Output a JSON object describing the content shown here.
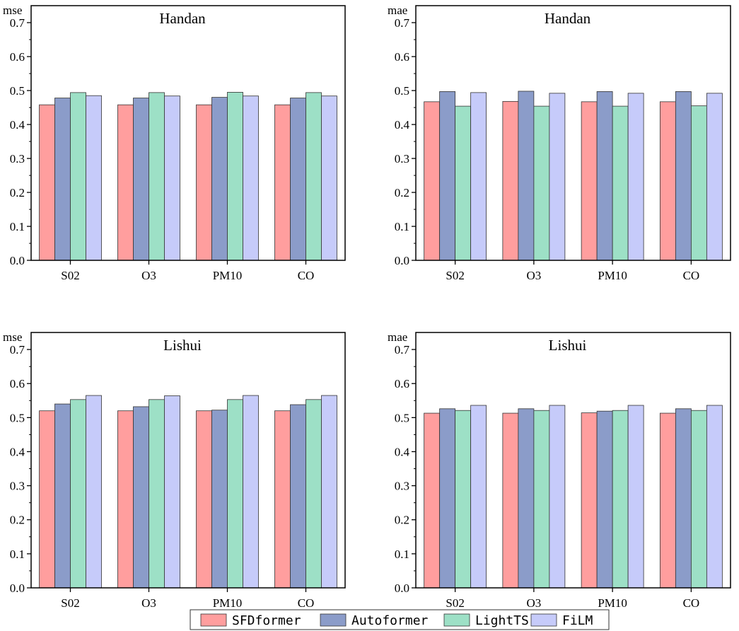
{
  "legend": [
    {
      "name": "SFDformer",
      "color": "#FF9E9E"
    },
    {
      "name": "Autoformer",
      "color": "#8B9CC9"
    },
    {
      "name": "LightTS",
      "color": "#9DE0C6"
    },
    {
      "name": "FiLM",
      "color": "#C6CBFA"
    }
  ],
  "chart_data": [
    {
      "type": "bar",
      "title": "Handan",
      "ylabel": "mse",
      "ylim": [
        0,
        0.75
      ],
      "yticks": [
        "0.0",
        "0.1",
        "0.2",
        "0.3",
        "0.4",
        "0.5",
        "0.6",
        "0.7"
      ],
      "categories": [
        "S02",
        "O3",
        "PM10",
        "CO"
      ],
      "series": [
        {
          "name": "SFDformer",
          "values": [
            0.458,
            0.458,
            0.458,
            0.458
          ]
        },
        {
          "name": "Autoformer",
          "values": [
            0.478,
            0.478,
            0.48,
            0.478
          ]
        },
        {
          "name": "LightTS",
          "values": [
            0.494,
            0.494,
            0.495,
            0.494
          ]
        },
        {
          "name": "FiLM",
          "values": [
            0.485,
            0.484,
            0.484,
            0.484
          ]
        }
      ]
    },
    {
      "type": "bar",
      "title": "Handan",
      "ylabel": "mae",
      "ylim": [
        0,
        0.75
      ],
      "yticks": [
        "0.0",
        "0.1",
        "0.2",
        "0.3",
        "0.4",
        "0.5",
        "0.6",
        "0.7"
      ],
      "categories": [
        "S02",
        "O3",
        "PM10",
        "CO"
      ],
      "series": [
        {
          "name": "SFDformer",
          "values": [
            0.467,
            0.468,
            0.467,
            0.467
          ]
        },
        {
          "name": "Autoformer",
          "values": [
            0.497,
            0.498,
            0.497,
            0.497
          ]
        },
        {
          "name": "LightTS",
          "values": [
            0.454,
            0.454,
            0.454,
            0.455
          ]
        },
        {
          "name": "FiLM",
          "values": [
            0.494,
            0.492,
            0.492,
            0.492
          ]
        }
      ]
    },
    {
      "type": "bar",
      "title": "Lishui",
      "ylabel": "mse",
      "ylim": [
        0,
        0.75
      ],
      "yticks": [
        "0.0",
        "0.1",
        "0.2",
        "0.3",
        "0.4",
        "0.5",
        "0.6",
        "0.7"
      ],
      "categories": [
        "S02",
        "O3",
        "PM10",
        "CO"
      ],
      "series": [
        {
          "name": "SFDformer",
          "values": [
            0.52,
            0.52,
            0.52,
            0.52
          ]
        },
        {
          "name": "Autoformer",
          "values": [
            0.54,
            0.532,
            0.522,
            0.538
          ]
        },
        {
          "name": "LightTS",
          "values": [
            0.553,
            0.553,
            0.553,
            0.553
          ]
        },
        {
          "name": "FiLM",
          "values": [
            0.565,
            0.564,
            0.565,
            0.565
          ]
        }
      ]
    },
    {
      "type": "bar",
      "title": "Lishui",
      "ylabel": "mae",
      "ylim": [
        0,
        0.75
      ],
      "yticks": [
        "0.0",
        "0.1",
        "0.2",
        "0.3",
        "0.4",
        "0.5",
        "0.6",
        "0.7"
      ],
      "categories": [
        "S02",
        "O3",
        "PM10",
        "CO"
      ],
      "series": [
        {
          "name": "SFDformer",
          "values": [
            0.513,
            0.513,
            0.514,
            0.513
          ]
        },
        {
          "name": "Autoformer",
          "values": [
            0.526,
            0.526,
            0.519,
            0.526
          ]
        },
        {
          "name": "LightTS",
          "values": [
            0.521,
            0.521,
            0.521,
            0.521
          ]
        },
        {
          "name": "FiLM",
          "values": [
            0.536,
            0.536,
            0.536,
            0.536
          ]
        }
      ]
    }
  ]
}
